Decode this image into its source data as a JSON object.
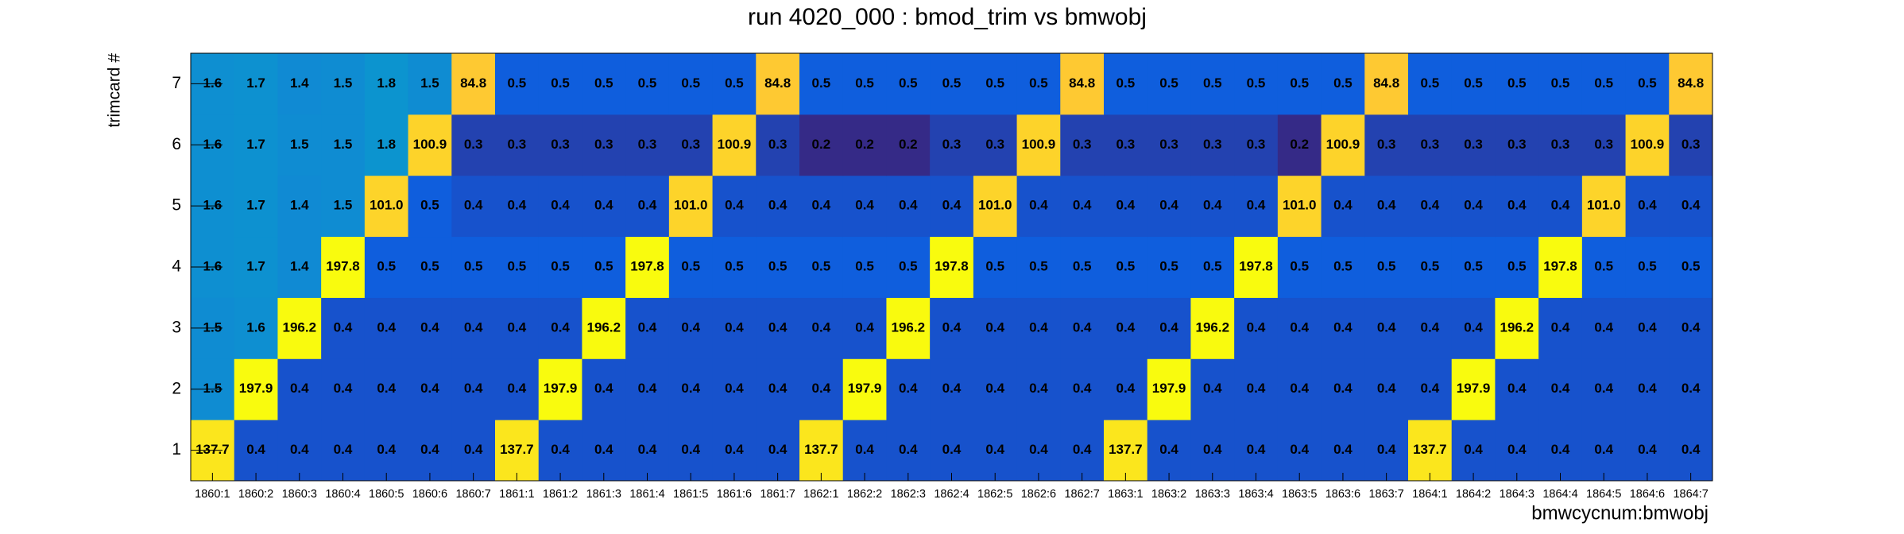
{
  "chart_data": {
    "type": "heatmap",
    "title": "run 4020_000 : bmod_trim vs bmwobj",
    "x_label": "bmwcycnum:bmwobj",
    "y_label": "trimcard #",
    "z_log": true,
    "palette": "bird",
    "categories": [
      "1860:1",
      "1860:2",
      "1860:3",
      "1860:4",
      "1860:5",
      "1860:6",
      "1860:7",
      "1861:1",
      "1861:2",
      "1861:3",
      "1861:4",
      "1861:5",
      "1861:6",
      "1861:7",
      "1862:1",
      "1862:2",
      "1862:3",
      "1862:4",
      "1862:5",
      "1862:6",
      "1862:7",
      "1863:1",
      "1863:2",
      "1863:3",
      "1863:4",
      "1863:5",
      "1863:6",
      "1863:7",
      "1864:1",
      "1864:2",
      "1864:3",
      "1864:4",
      "1864:5",
      "1864:6",
      "1864:7"
    ],
    "series": [
      {
        "name": "1",
        "values": [
          137.7,
          0.4,
          0.4,
          0.4,
          0.4,
          0.4,
          0.4,
          137.7,
          0.4,
          0.4,
          0.4,
          0.4,
          0.4,
          0.4,
          137.7,
          0.4,
          0.4,
          0.4,
          0.4,
          0.4,
          0.4,
          137.7,
          0.4,
          0.4,
          0.4,
          0.4,
          0.4,
          0.4,
          137.7,
          0.4,
          0.4,
          0.4,
          0.4,
          0.4,
          0.4
        ]
      },
      {
        "name": "2",
        "values": [
          1.5,
          197.9,
          0.4,
          0.4,
          0.4,
          0.4,
          0.4,
          0.4,
          197.9,
          0.4,
          0.4,
          0.4,
          0.4,
          0.4,
          0.4,
          197.9,
          0.4,
          0.4,
          0.4,
          0.4,
          0.4,
          0.4,
          197.9,
          0.4,
          0.4,
          0.4,
          0.4,
          0.4,
          0.4,
          197.9,
          0.4,
          0.4,
          0.4,
          0.4,
          0.4
        ]
      },
      {
        "name": "3",
        "values": [
          1.5,
          1.6,
          196.2,
          0.4,
          0.4,
          0.4,
          0.4,
          0.4,
          0.4,
          196.2,
          0.4,
          0.4,
          0.4,
          0.4,
          0.4,
          0.4,
          196.2,
          0.4,
          0.4,
          0.4,
          0.4,
          0.4,
          0.4,
          196.2,
          0.4,
          0.4,
          0.4,
          0.4,
          0.4,
          0.4,
          196.2,
          0.4,
          0.4,
          0.4,
          0.4
        ]
      },
      {
        "name": "4",
        "values": [
          1.6,
          1.7,
          1.4,
          197.8,
          0.5,
          0.5,
          0.5,
          0.5,
          0.5,
          0.5,
          197.8,
          0.5,
          0.5,
          0.5,
          0.5,
          0.5,
          0.5,
          197.8,
          0.5,
          0.5,
          0.5,
          0.5,
          0.5,
          0.5,
          197.8,
          0.5,
          0.5,
          0.5,
          0.5,
          0.5,
          0.5,
          197.8,
          0.5,
          0.5,
          0.5
        ]
      },
      {
        "name": "5",
        "values": [
          1.6,
          1.7,
          1.4,
          1.5,
          101,
          0.5,
          0.4,
          0.4,
          0.4,
          0.4,
          0.4,
          101,
          0.4,
          0.4,
          0.4,
          0.4,
          0.4,
          0.4,
          101,
          0.4,
          0.4,
          0.4,
          0.4,
          0.4,
          0.4,
          101,
          0.4,
          0.4,
          0.4,
          0.4,
          0.4,
          0.4,
          101,
          0.4,
          0.4
        ],
        "value_labels": [
          "1.6",
          "1.7",
          "1.4",
          "1.5",
          "101.0",
          "0.5",
          "0.4",
          "0.4",
          "0.4",
          "0.4",
          "0.4",
          "101.0",
          "0.4",
          "0.4",
          "0.4",
          "0.4",
          "0.4",
          "0.4",
          "101.0",
          "0.4",
          "0.4",
          "0.4",
          "0.4",
          "0.4",
          "0.4",
          "101.0",
          "0.4",
          "0.4",
          "0.4",
          "0.4",
          "0.4",
          "0.4",
          "101.0",
          "0.4",
          "0.4"
        ]
      },
      {
        "name": "6",
        "values": [
          1.6,
          1.7,
          1.5,
          1.5,
          1.8,
          100.9,
          0.3,
          0.3,
          0.3,
          0.3,
          0.3,
          0.3,
          100.9,
          0.3,
          0.2,
          0.2,
          0.2,
          0.3,
          0.3,
          100.9,
          0.3,
          0.3,
          0.3,
          0.3,
          0.3,
          0.2,
          100.9,
          0.3,
          0.3,
          0.3,
          0.3,
          0.3,
          0.3,
          100.9,
          0.3
        ]
      },
      {
        "name": "7",
        "values": [
          1.6,
          1.7,
          1.4,
          1.5,
          1.8,
          1.5,
          84.8,
          0.5,
          0.5,
          0.5,
          0.5,
          0.5,
          0.5,
          84.8,
          0.5,
          0.5,
          0.5,
          0.5,
          0.5,
          0.5,
          84.8,
          0.5,
          0.5,
          0.5,
          0.5,
          0.5,
          0.5,
          84.8,
          0.5,
          0.5,
          0.5,
          0.5,
          0.5,
          0.5,
          84.8
        ]
      }
    ]
  }
}
